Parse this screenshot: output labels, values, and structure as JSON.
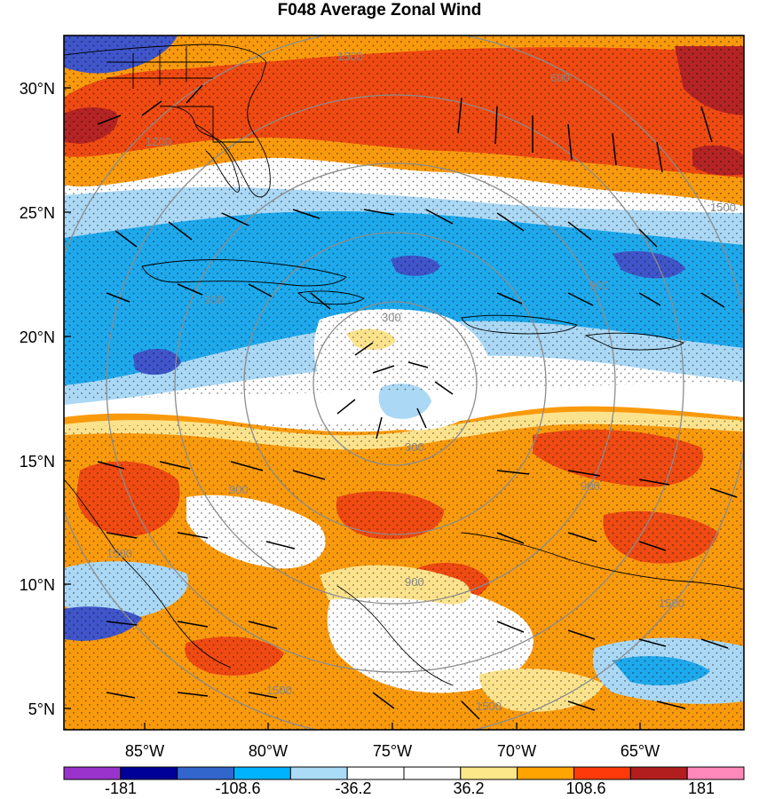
{
  "title": "F048 Average Zonal Wind",
  "map": {
    "lat_labels": [
      "30°N",
      "25°N",
      "20°N",
      "15°N",
      "10°N",
      "5°N"
    ],
    "lon_labels": [
      "85°W",
      "80°W",
      "75°W",
      "70°W",
      "65°W"
    ],
    "contour_labels": [
      "1500",
      "1500",
      "1500",
      "1500",
      "1500",
      "1500",
      "900",
      "900",
      "900",
      "900",
      "900",
      "600",
      "300",
      "300",
      "1200"
    ],
    "contour_color": "#8c8c8c",
    "coast_color": "#000000"
  },
  "colorbar": {
    "colors": [
      "#9933cc",
      "#000099",
      "#3366cc",
      "#00b3ff",
      "#aadcf8",
      "#ffffff",
      "#ffffff",
      "#fde889",
      "#ffa400",
      "#ff3a0a",
      "#b21e1e",
      "#ff88bb"
    ],
    "labels": [
      "-181",
      "-108.6",
      "-36.2",
      "36.2",
      "108.6",
      "181"
    ]
  },
  "palette": {
    "strong_neg": "#3f55c9",
    "neg": "#1ea9ec",
    "weak_neg": "#aad8f5",
    "zero": "#ffffff",
    "weak_pos": "#fbe38d",
    "pos": "#f99a0d",
    "strong_pos": "#ee4a12",
    "very_strong_pos": "#b52424",
    "extreme_pos": "#ff88bb"
  }
}
